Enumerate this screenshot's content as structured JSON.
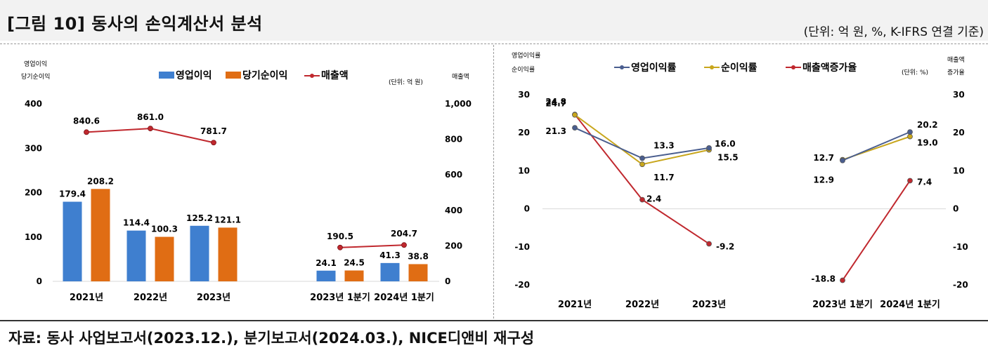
{
  "header": {
    "title": "[그림 10] 동사의 손익계산서 분석",
    "unit": "(단위: 억 원, %, K-IFRS 연결 기준)"
  },
  "source": "자료: 동사 사업보고서(2023.12.), 분기보고서(2024.03.), NICE디앤비 재구성",
  "colors": {
    "blue": "#3f7fcf",
    "orange": "#e06d14",
    "red": "#c0282e",
    "navy": "#4a5e8f",
    "gold": "#c8a61c"
  },
  "chart_data": [
    {
      "type": "bar",
      "left_axis_label": [
        "영업이익",
        "당기순이익"
      ],
      "right_axis_label": "매출액",
      "unit_note": "(단위: 억 원)",
      "categories": [
        "2021년",
        "2022년",
        "2023년",
        "2023년 1분기",
        "2024년 1분기"
      ],
      "ylim": [
        0,
        400
      ],
      "yticks": [
        "0",
        "100",
        "200",
        "300",
        "400"
      ],
      "y2lim": [
        0,
        1000
      ],
      "y2ticks": [
        "0",
        "200",
        "400",
        "600",
        "800",
        "1,000"
      ],
      "legend_position": "top",
      "series": [
        {
          "name": "영업이익",
          "kind": "bar",
          "axis": "left",
          "values": [
            179.4,
            114.4,
            125.2,
            24.1,
            41.3
          ],
          "labels": [
            "179.4",
            "114.4",
            "125.2",
            "24.1",
            "41.3"
          ]
        },
        {
          "name": "당기순이익",
          "kind": "bar",
          "axis": "left",
          "values": [
            208.2,
            100.3,
            121.1,
            24.5,
            38.8
          ],
          "labels": [
            "208.2",
            "100.3",
            "121.1",
            "24.5",
            "38.8"
          ]
        },
        {
          "name": "매출액",
          "kind": "line",
          "axis": "right",
          "groups": [
            [
              840.6,
              861.0,
              781.7
            ],
            [
              190.5,
              204.7
            ]
          ],
          "labels": [
            "840.6",
            "861.0",
            "781.7",
            "190.5",
            "204.7"
          ]
        }
      ]
    },
    {
      "type": "line",
      "left_axis_label": [
        "영업이익률",
        "순이익률"
      ],
      "right_axis_label": [
        "매출액",
        "증가율"
      ],
      "unit_note": "(단위: %)",
      "categories": [
        "2021년",
        "2022년",
        "2023년",
        "2023년 1분기",
        "2024년 1분기"
      ],
      "ylim": [
        -20,
        30
      ],
      "yticks": [
        "-20",
        "-10",
        "0",
        "10",
        "20",
        "30"
      ],
      "legend_position": "top",
      "series": [
        {
          "name": "영업이익률",
          "groups": [
            [
              21.3,
              13.3,
              16.0
            ],
            [
              12.7,
              20.2
            ]
          ],
          "labels": [
            "21.3",
            "13.3",
            "16.0",
            "12.7",
            "20.2"
          ]
        },
        {
          "name": "순이익률",
          "groups": [
            [
              24.7,
              11.7,
              15.5
            ],
            [
              12.9,
              19.0
            ]
          ],
          "labels": [
            "24.7",
            "11.7",
            "15.5",
            "12.9",
            "19.0"
          ]
        },
        {
          "name": "매출액증가율",
          "groups": [
            [
              24.8,
              2.4,
              -9.2
            ],
            [
              -18.8,
              7.4
            ]
          ],
          "labels": [
            "24.8",
            "2.4",
            "-9.2",
            "-18.8",
            "7.4"
          ]
        }
      ]
    }
  ]
}
